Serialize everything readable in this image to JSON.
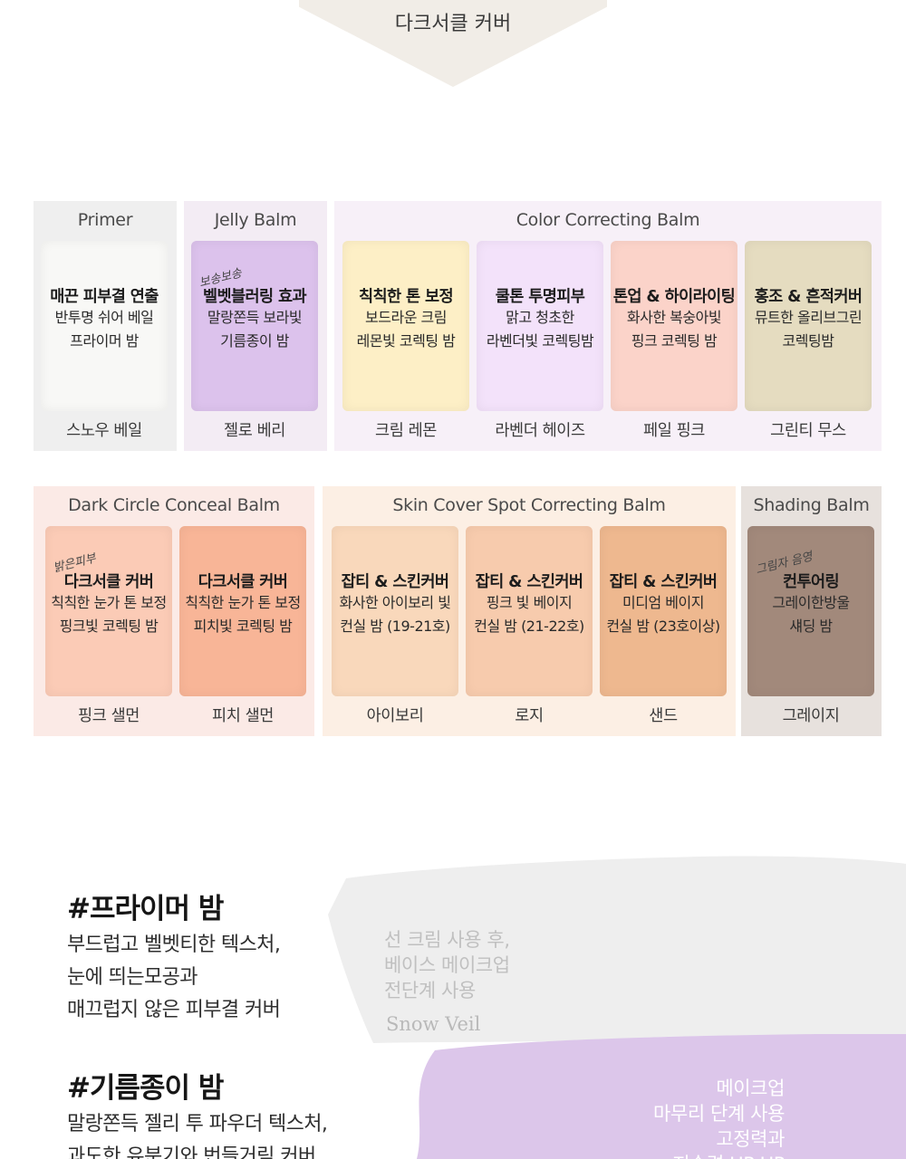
{
  "top_tab": {
    "label": "다크서클 커버"
  },
  "groups": [
    {
      "title": "Primer",
      "swatches": [
        {
          "tag": "",
          "head": "매끈 피부결 연출",
          "lines": [
            "반투명 쉬어 베일",
            "프라이머 밤"
          ],
          "caption": "스노우 베일",
          "color": "#f8f8f6"
        }
      ],
      "bg": "#efefef"
    },
    {
      "title": "Jelly Balm",
      "swatches": [
        {
          "tag": "보송보송",
          "head": "벨벳블러링 효과",
          "lines": [
            "말랑쫀득 보라빛",
            "기름종이 밤"
          ],
          "caption": "젤로 베리",
          "color": "#dcc2ec"
        }
      ],
      "bg": "#f3ecf4"
    },
    {
      "title": "Color Correcting Balm",
      "swatches": [
        {
          "tag": "",
          "head": "칙칙한 톤 보정",
          "lines": [
            "보드라운 크림",
            "레몬빛 코렉팅 밤"
          ],
          "caption": "크림 레몬",
          "color": "#fdefc6"
        },
        {
          "tag": "",
          "head": "쿨톤 투명피부",
          "lines": [
            "맑고 청초한",
            "라벤더빛 코렉팅밤"
          ],
          "caption": "라벤더 헤이즈",
          "color": "#f3e2fa"
        },
        {
          "tag": "",
          "head": "톤업 & 하이라이팅",
          "lines": [
            "화사한 복숭아빛",
            "핑크 코렉팅 밤"
          ],
          "caption": "페일 핑크",
          "color": "#fbd3c9"
        },
        {
          "tag": "",
          "head": "홍조 & 흔적커버",
          "lines": [
            "뮤트한 올리브그린",
            "코렉팅밤"
          ],
          "caption": "그린티 무스",
          "color": "#e5dcc0"
        }
      ],
      "bg": "#f7f0f8"
    },
    {
      "title": "Dark Circle Conceal Balm",
      "swatches": [
        {
          "tag": "밝은피부",
          "head": "다크서클 커버",
          "lines": [
            "칙칙한 눈가 톤 보정",
            "핑크빛 코렉팅 밤"
          ],
          "caption": "핑크 샐먼",
          "color": "#fbcbb6"
        },
        {
          "tag": "",
          "head": "다크서클 커버",
          "lines": [
            "칙칙한 눈가 톤 보정",
            "피치빛 코렉팅 밤"
          ],
          "caption": "피치 샐먼",
          "color": "#f8b597"
        }
      ],
      "bg": "#fbeae6"
    },
    {
      "title": "Skin Cover Spot Correcting Balm",
      "swatches": [
        {
          "tag": "",
          "head": "잡티 & 스킨커버",
          "lines": [
            "화사한 아이보리 빛",
            "컨실 밤 (19-21호)"
          ],
          "caption": "아이보리",
          "color": "#f9d8bb"
        },
        {
          "tag": "",
          "head": "잡티 & 스킨커버",
          "lines": [
            "핑크 빛 베이지",
            "컨실 밤 (21-22호)"
          ],
          "caption": "로지",
          "color": "#f7cbad"
        },
        {
          "tag": "",
          "head": "잡티 & 스킨커버",
          "lines": [
            "미디엄 베이지",
            "컨실 밤 (23호이상)"
          ],
          "caption": "샌드",
          "color": "#eeb88f"
        }
      ],
      "bg": "#fcefe4"
    },
    {
      "title": "Shading Balm",
      "swatches": [
        {
          "tag": "그림자 음영",
          "head": "컨투어링",
          "lines": [
            "그레이한방울",
            "섀딩 밤"
          ],
          "caption": "그레이지",
          "color": "#a2897b"
        }
      ],
      "bg": "#e7e1dd"
    }
  ],
  "section2": {
    "blocks": [
      {
        "heading": "#프라이머 밤",
        "lines": [
          "부드럽고 벨벳티한 텍스처,",
          "눈에 띄는모공과",
          "매끄럽지 않은 피부결 커버"
        ]
      },
      {
        "heading": "#기름종이 밤",
        "lines": [
          "말랑쫀득 젤리 투 파우더 텍스처,",
          "과도한 유분기와 번들거림 커버"
        ]
      }
    ],
    "texture1": {
      "lines": [
        "선 크림 사용 후,",
        "베이스 메이크업",
        "전단계 사용"
      ],
      "brand": "Snow Veil",
      "color": "#eeeeee"
    },
    "texture2": {
      "lines": [
        "메이크업",
        "마무리 단계 사용",
        "고정력과",
        "지속력 UP UP"
      ],
      "color": "#dcc6ea"
    }
  }
}
